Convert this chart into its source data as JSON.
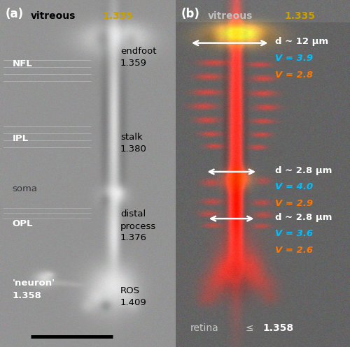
{
  "fig_width": 5.0,
  "fig_height": 4.97,
  "panel_a_bg": "#959595",
  "panel_b_bg": "#636363",
  "panel_b_top_bg": "#707070",
  "panel_a_label": "(a)",
  "panel_b_label": "(b)",
  "panel_a_vitreous": "vitreous",
  "panel_a_vitreous_n": "1.335",
  "panel_a_vitreous_color": "#000000",
  "panel_a_vitreous_n_color": "#c8a000",
  "panel_b_vitreous": "vitreous",
  "panel_b_vitreous_n": "1.335",
  "panel_b_vitreous_color": "#c0c0c0",
  "panel_b_vitreous_n_color": "#c8a000",
  "d_color": "#ffffff",
  "V_cyan_color": "#00bfff",
  "V_orange_color": "#ff7700",
  "scalebar_color": "#000000"
}
